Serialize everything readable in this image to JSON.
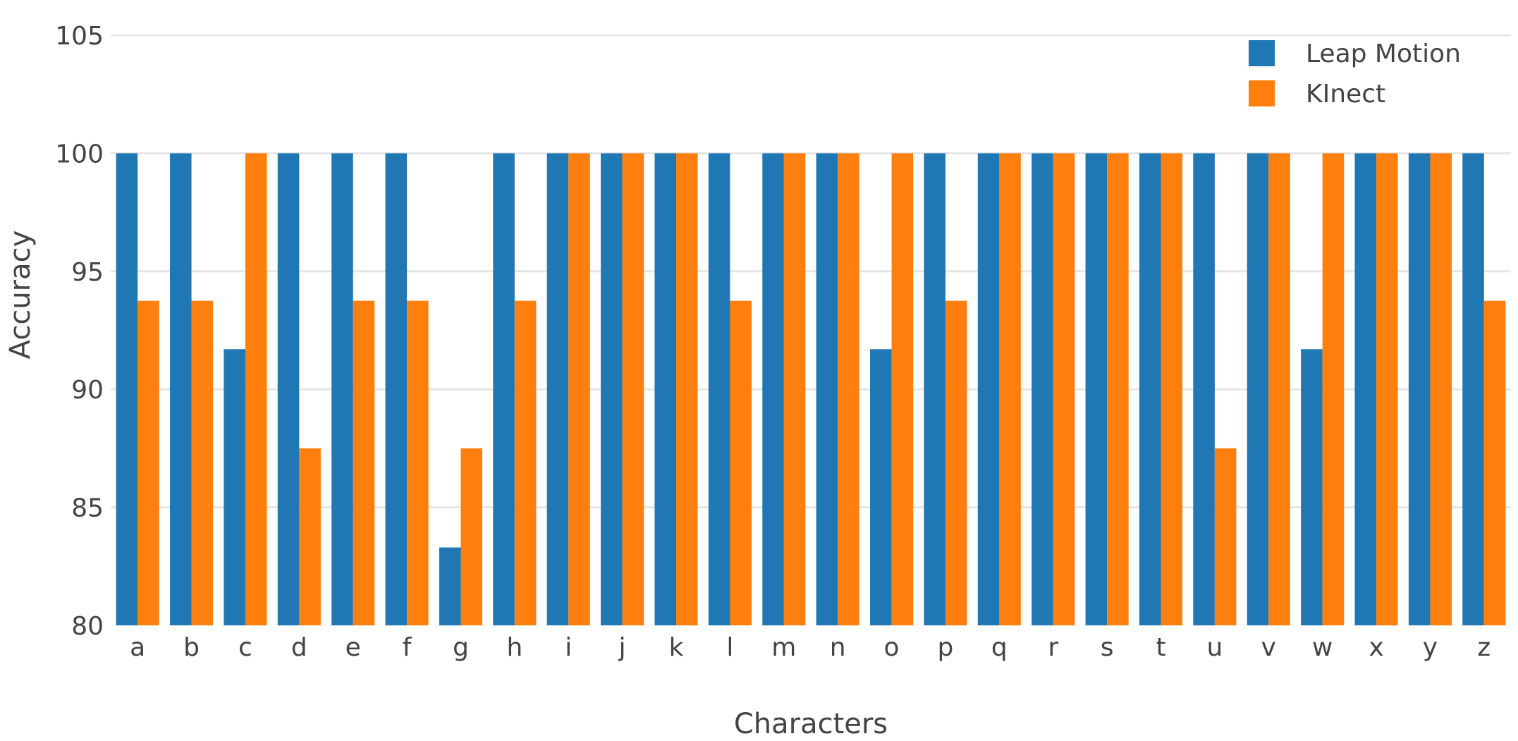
{
  "chart_data": {
    "type": "bar",
    "title": "",
    "xlabel": "Characters",
    "ylabel": "Accuracy",
    "ylim": [
      80,
      105
    ],
    "yticks": [
      80,
      85,
      90,
      95,
      100,
      105
    ],
    "grid": true,
    "legend_position": "top-right",
    "categories": [
      "a",
      "b",
      "c",
      "d",
      "e",
      "f",
      "g",
      "h",
      "i",
      "j",
      "k",
      "l",
      "m",
      "n",
      "o",
      "p",
      "q",
      "r",
      "s",
      "t",
      "u",
      "v",
      "w",
      "x",
      "y",
      "z"
    ],
    "series": [
      {
        "name": "Leap Motion",
        "color": "#1f77b4",
        "values": [
          100,
          100,
          91.7,
          100,
          100,
          100,
          83.3,
          100,
          100,
          100,
          100,
          100,
          100,
          100,
          91.7,
          100,
          100,
          100,
          100,
          100,
          100,
          100,
          91.7,
          100,
          100,
          100
        ]
      },
      {
        "name": "KInect",
        "color": "#ff7f0e",
        "values": [
          93.75,
          93.75,
          100,
          87.5,
          93.75,
          93.75,
          87.5,
          93.75,
          100,
          100,
          100,
          93.75,
          100,
          100,
          100,
          93.75,
          100,
          100,
          100,
          100,
          87.5,
          100,
          100,
          100,
          100,
          93.75
        ]
      }
    ]
  }
}
